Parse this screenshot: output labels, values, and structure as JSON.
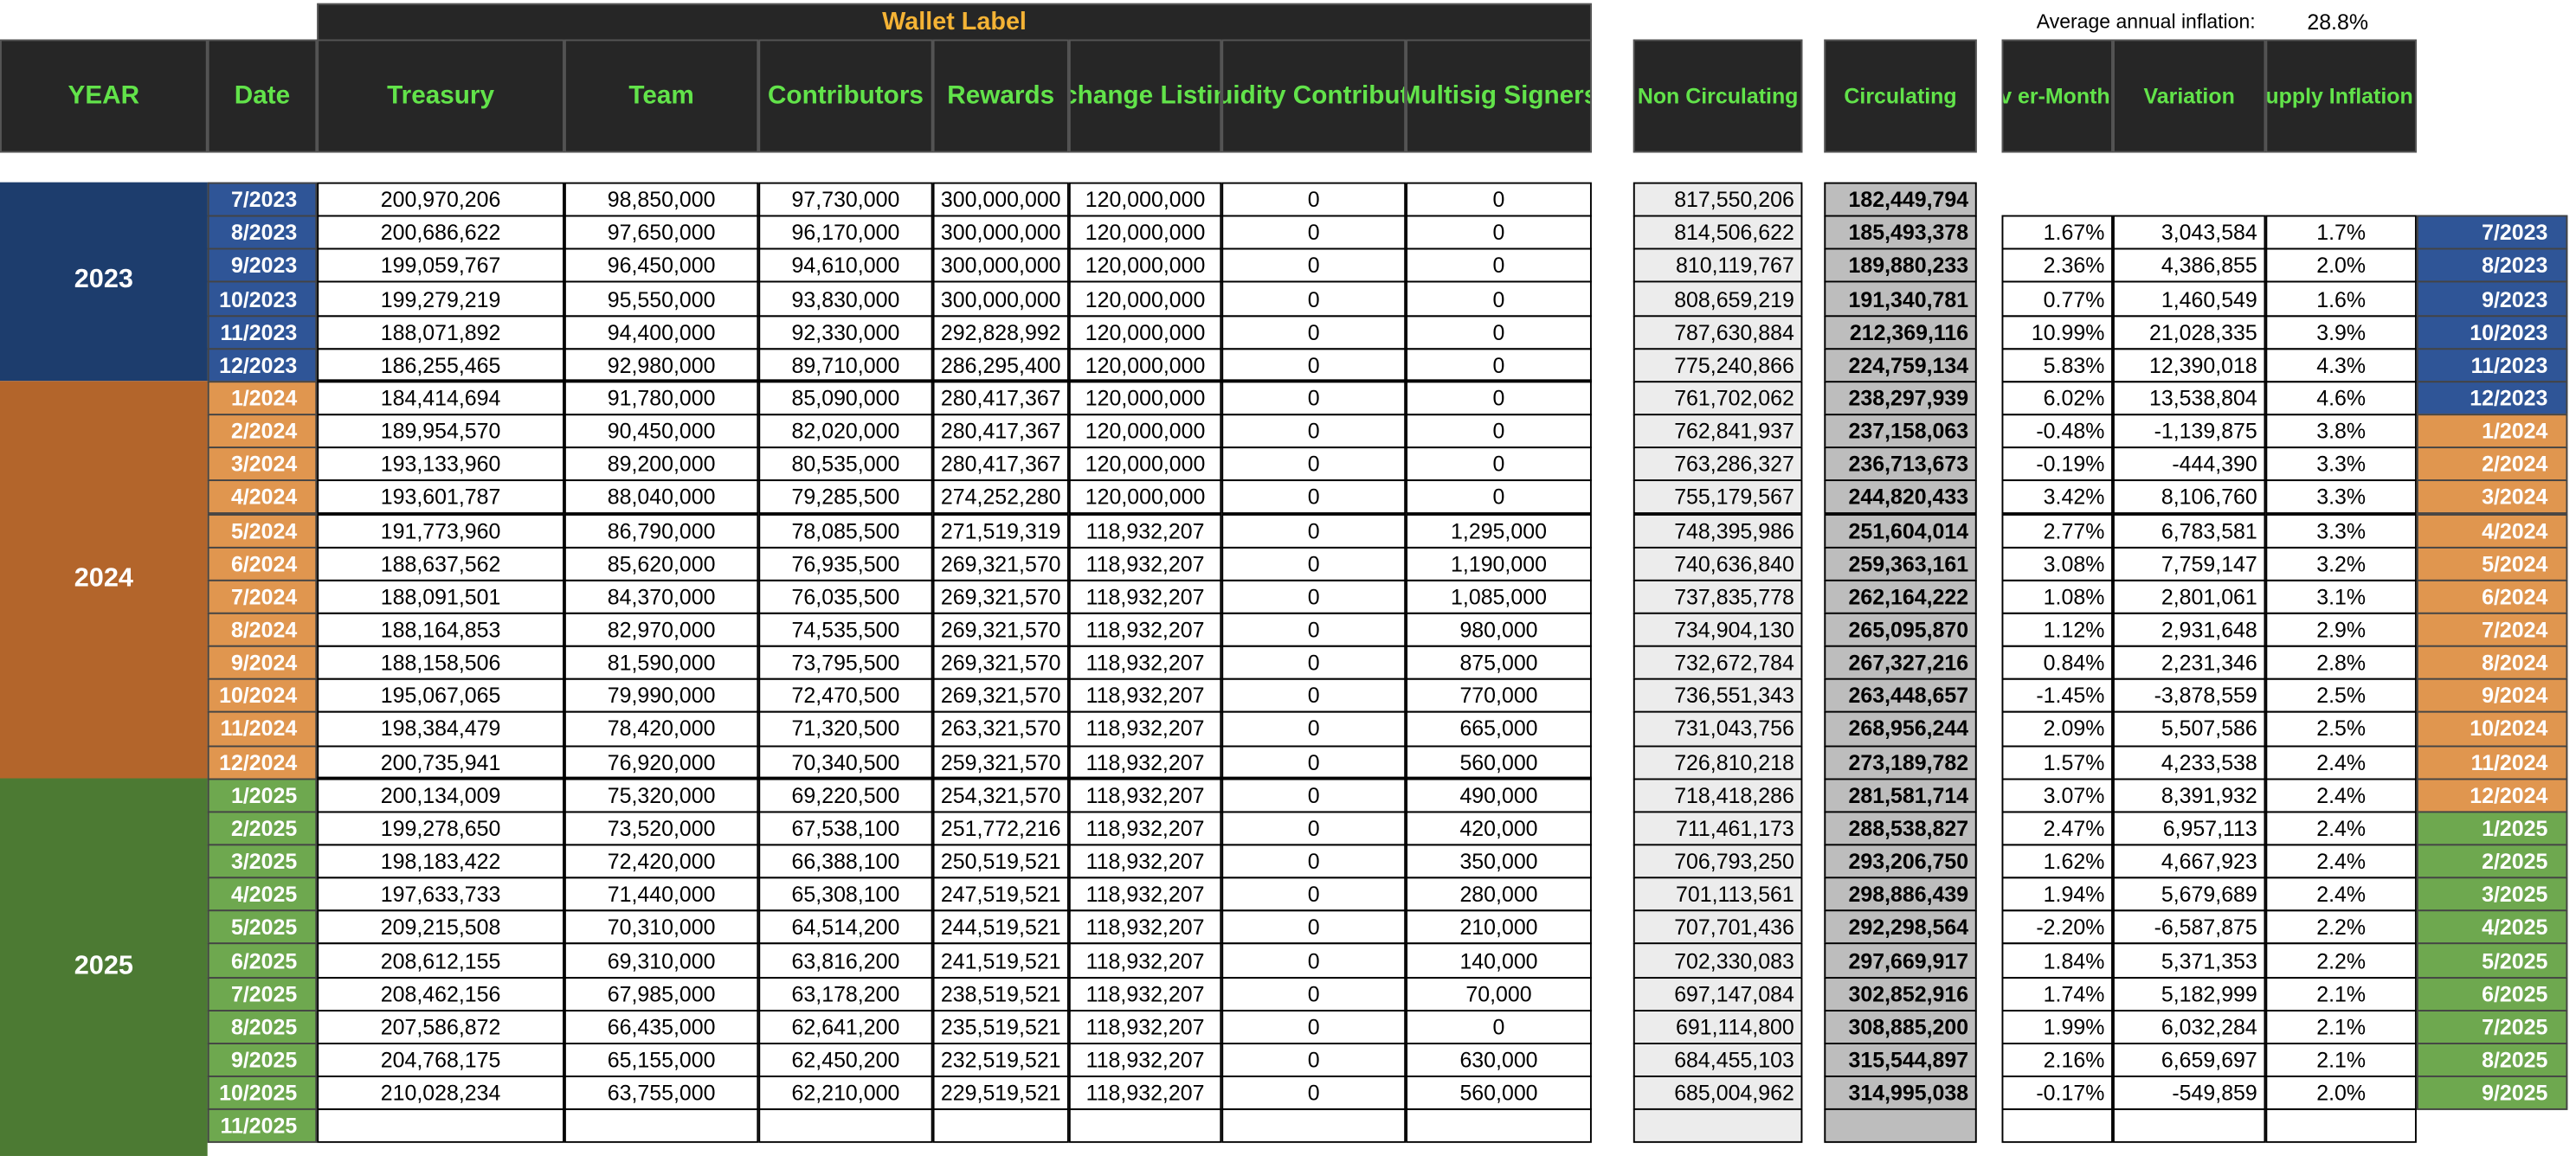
{
  "header": {
    "wallet_label": "Wallet Label",
    "average_label": "Average annual inflation:",
    "average_value": "28.8%",
    "columns": [
      "YEAR",
      "Date",
      "Treasury",
      "Team",
      "Contributors",
      "Rewards",
      "Exchange Listings",
      "Liquidity Contributors",
      "Multisig Signers",
      "Non Circulating",
      "Circulating",
      "Month-ov er-Month inflation",
      "Variation",
      "Circulating Supply Inflation (Cumulative)"
    ]
  },
  "years": [
    "2023",
    "2024",
    "2025"
  ],
  "rows": [
    [
      "7/2023",
      "200,970,206",
      "98,850,000",
      "97,730,000",
      "300,000,000",
      "120,000,000",
      "0",
      "0",
      "817,550,206",
      "182,449,794",
      null,
      null,
      null,
      null
    ],
    [
      "8/2023",
      "200,686,622",
      "97,650,000",
      "96,170,000",
      "300,000,000",
      "120,000,000",
      "0",
      "0",
      "814,506,622",
      "185,493,378",
      "1.67%",
      "3,043,584",
      "1.7%",
      "7/2023"
    ],
    [
      "9/2023",
      "199,059,767",
      "96,450,000",
      "94,610,000",
      "300,000,000",
      "120,000,000",
      "0",
      "0",
      "810,119,767",
      "189,880,233",
      "2.36%",
      "4,386,855",
      "2.0%",
      "8/2023"
    ],
    [
      "10/2023",
      "199,279,219",
      "95,550,000",
      "93,830,000",
      "300,000,000",
      "120,000,000",
      "0",
      "0",
      "808,659,219",
      "191,340,781",
      "0.77%",
      "1,460,549",
      "1.6%",
      "9/2023"
    ],
    [
      "11/2023",
      "188,071,892",
      "94,400,000",
      "92,330,000",
      "292,828,992",
      "120,000,000",
      "0",
      "0",
      "787,630,884",
      "212,369,116",
      "10.99%",
      "21,028,335",
      "3.9%",
      "10/2023"
    ],
    [
      "12/2023",
      "186,255,465",
      "92,980,000",
      "89,710,000",
      "286,295,400",
      "120,000,000",
      "0",
      "0",
      "775,240,866",
      "224,759,134",
      "5.83%",
      "12,390,018",
      "4.3%",
      "11/2023"
    ],
    [
      "1/2024",
      "184,414,694",
      "91,780,000",
      "85,090,000",
      "280,417,367",
      "120,000,000",
      "0",
      "0",
      "761,702,062",
      "238,297,939",
      "6.02%",
      "13,538,804",
      "4.6%",
      "12/2023"
    ],
    [
      "2/2024",
      "189,954,570",
      "90,450,000",
      "82,020,000",
      "280,417,367",
      "120,000,000",
      "0",
      "0",
      "762,841,937",
      "237,158,063",
      "-0.48%",
      "-1,139,875",
      "3.8%",
      "1/2024"
    ],
    [
      "3/2024",
      "193,133,960",
      "89,200,000",
      "80,535,000",
      "280,417,367",
      "120,000,000",
      "0",
      "0",
      "763,286,327",
      "236,713,673",
      "-0.19%",
      "-444,390",
      "3.3%",
      "2/2024"
    ],
    [
      "4/2024",
      "193,601,787",
      "88,040,000",
      "79,285,500",
      "274,252,280",
      "120,000,000",
      "0",
      "0",
      "755,179,567",
      "244,820,433",
      "3.42%",
      "8,106,760",
      "3.3%",
      "3/2024"
    ],
    [
      "5/2024",
      "191,773,960",
      "86,790,000",
      "78,085,500",
      "271,519,319",
      "118,932,207",
      "0",
      "1,295,000",
      "748,395,986",
      "251,604,014",
      "2.77%",
      "6,783,581",
      "3.3%",
      "4/2024"
    ],
    [
      "6/2024",
      "188,637,562",
      "85,620,000",
      "76,935,500",
      "269,321,570",
      "118,932,207",
      "0",
      "1,190,000",
      "740,636,840",
      "259,363,161",
      "3.08%",
      "7,759,147",
      "3.2%",
      "5/2024"
    ],
    [
      "7/2024",
      "188,091,501",
      "84,370,000",
      "76,035,500",
      "269,321,570",
      "118,932,207",
      "0",
      "1,085,000",
      "737,835,778",
      "262,164,222",
      "1.08%",
      "2,801,061",
      "3.1%",
      "6/2024"
    ],
    [
      "8/2024",
      "188,164,853",
      "82,970,000",
      "74,535,500",
      "269,321,570",
      "118,932,207",
      "0",
      "980,000",
      "734,904,130",
      "265,095,870",
      "1.12%",
      "2,931,648",
      "2.9%",
      "7/2024"
    ],
    [
      "9/2024",
      "188,158,506",
      "81,590,000",
      "73,795,500",
      "269,321,570",
      "118,932,207",
      "0",
      "875,000",
      "732,672,784",
      "267,327,216",
      "0.84%",
      "2,231,346",
      "2.8%",
      "8/2024"
    ],
    [
      "10/2024",
      "195,067,065",
      "79,990,000",
      "72,470,500",
      "269,321,570",
      "118,932,207",
      "0",
      "770,000",
      "736,551,343",
      "263,448,657",
      "-1.45%",
      "-3,878,559",
      "2.5%",
      "9/2024"
    ],
    [
      "11/2024",
      "198,384,479",
      "78,420,000",
      "71,320,500",
      "263,321,570",
      "118,932,207",
      "0",
      "665,000",
      "731,043,756",
      "268,956,244",
      "2.09%",
      "5,507,586",
      "2.5%",
      "10/2024"
    ],
    [
      "12/2024",
      "200,735,941",
      "76,920,000",
      "70,340,500",
      "259,321,570",
      "118,932,207",
      "0",
      "560,000",
      "726,810,218",
      "273,189,782",
      "1.57%",
      "4,233,538",
      "2.4%",
      "11/2024"
    ],
    [
      "1/2025",
      "200,134,009",
      "75,320,000",
      "69,220,500",
      "254,321,570",
      "118,932,207",
      "0",
      "490,000",
      "718,418,286",
      "281,581,714",
      "3.07%",
      "8,391,932",
      "2.4%",
      "12/2024"
    ],
    [
      "2/2025",
      "199,278,650",
      "73,520,000",
      "67,538,100",
      "251,772,216",
      "118,932,207",
      "0",
      "420,000",
      "711,461,173",
      "288,538,827",
      "2.47%",
      "6,957,113",
      "2.4%",
      "1/2025"
    ],
    [
      "3/2025",
      "198,183,422",
      "72,420,000",
      "66,388,100",
      "250,519,521",
      "118,932,207",
      "0",
      "350,000",
      "706,793,250",
      "293,206,750",
      "1.62%",
      "4,667,923",
      "2.4%",
      "2/2025"
    ],
    [
      "4/2025",
      "197,633,733",
      "71,440,000",
      "65,308,100",
      "247,519,521",
      "118,932,207",
      "0",
      "280,000",
      "701,113,561",
      "298,886,439",
      "1.94%",
      "5,679,689",
      "2.4%",
      "3/2025"
    ],
    [
      "5/2025",
      "209,215,508",
      "70,310,000",
      "64,514,200",
      "244,519,521",
      "118,932,207",
      "0",
      "210,000",
      "707,701,436",
      "292,298,564",
      "-2.20%",
      "-6,587,875",
      "2.2%",
      "4/2025"
    ],
    [
      "6/2025",
      "208,612,155",
      "69,310,000",
      "63,816,200",
      "241,519,521",
      "118,932,207",
      "0",
      "140,000",
      "702,330,083",
      "297,669,917",
      "1.84%",
      "5,371,353",
      "2.2%",
      "5/2025"
    ],
    [
      "7/2025",
      "208,462,156",
      "67,985,000",
      "63,178,200",
      "238,519,521",
      "118,932,207",
      "0",
      "70,000",
      "697,147,084",
      "302,852,916",
      "1.74%",
      "5,182,999",
      "2.1%",
      "6/2025"
    ],
    [
      "8/2025",
      "207,586,872",
      "66,435,000",
      "62,641,200",
      "235,519,521",
      "118,932,207",
      "0",
      "0",
      "691,114,800",
      "308,885,200",
      "1.99%",
      "6,032,284",
      "2.1%",
      "7/2025"
    ],
    [
      "9/2025",
      "204,768,175",
      "65,155,000",
      "62,450,200",
      "232,519,521",
      "118,932,207",
      "0",
      "630,000",
      "684,455,103",
      "315,544,897",
      "2.16%",
      "6,659,697",
      "2.1%",
      "8/2025"
    ],
    [
      "10/2025",
      "210,028,234",
      "63,755,000",
      "62,210,000",
      "229,519,521",
      "118,932,207",
      "0",
      "560,000",
      "685,004,962",
      "314,995,038",
      "-0.17%",
      "-549,859",
      "2.0%",
      "9/2025"
    ],
    [
      "11/2025",
      null,
      null,
      null,
      null,
      null,
      null,
      null,
      null,
      null,
      null,
      null,
      null,
      null
    ]
  ]
}
